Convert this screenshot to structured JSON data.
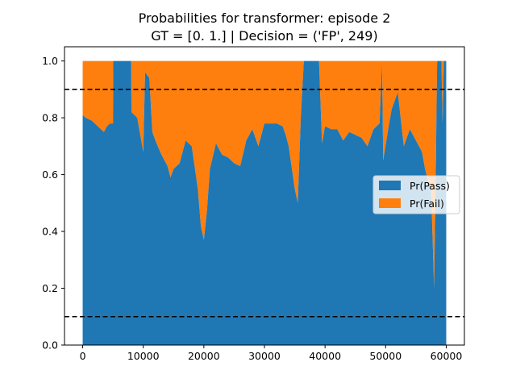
{
  "chart_data": {
    "type": "area",
    "stacked": true,
    "title": [
      "Probabilities for transformer: episode 2",
      "GT = [0. 1.] | Decision = ('FP', 249)"
    ],
    "xlabel": "",
    "ylabel": "",
    "xlim": [
      -3000,
      63000
    ],
    "ylim": [
      0.0,
      1.05
    ],
    "xticks": [
      0,
      10000,
      20000,
      30000,
      40000,
      50000,
      60000
    ],
    "yticks": [
      0.0,
      0.2,
      0.4,
      0.6,
      0.8,
      1.0
    ],
    "xtick_labels": [
      "0",
      "10000",
      "20000",
      "30000",
      "40000",
      "50000",
      "60000"
    ],
    "ytick_labels": [
      "0.0",
      "0.2",
      "0.4",
      "0.6",
      "0.8",
      "1.0"
    ],
    "hlines": [
      0.9,
      0.1
    ],
    "hline_style": "dashed",
    "hline_color": "#000000",
    "legend": {
      "position": "center-right",
      "entries": [
        "Pr(Pass)",
        "Pr(Fail)"
      ]
    },
    "series": [
      {
        "name": "Pr(Pass)",
        "color": "#1f77b4",
        "points": [
          [
            0,
            0.81
          ],
          [
            500,
            0.8
          ],
          [
            1000,
            0.795
          ],
          [
            1500,
            0.79
          ],
          [
            2000,
            0.78
          ],
          [
            2500,
            0.77
          ],
          [
            3000,
            0.76
          ],
          [
            3500,
            0.75
          ],
          [
            4000,
            0.77
          ],
          [
            4500,
            0.78
          ],
          [
            5000,
            0.78
          ],
          [
            5050,
            1.0
          ],
          [
            8000,
            1.0
          ],
          [
            8050,
            0.82
          ],
          [
            9000,
            0.8
          ],
          [
            10000,
            0.68
          ],
          [
            10300,
            0.96
          ],
          [
            11000,
            0.94
          ],
          [
            11500,
            0.75
          ],
          [
            12000,
            0.72
          ],
          [
            13000,
            0.67
          ],
          [
            14000,
            0.63
          ],
          [
            14500,
            0.59
          ],
          [
            15000,
            0.62
          ],
          [
            16000,
            0.64
          ],
          [
            17000,
            0.72
          ],
          [
            18000,
            0.7
          ],
          [
            19000,
            0.55
          ],
          [
            19500,
            0.42
          ],
          [
            20000,
            0.37
          ],
          [
            20500,
            0.47
          ],
          [
            21000,
            0.62
          ],
          [
            22000,
            0.71
          ],
          [
            23000,
            0.67
          ],
          [
            24000,
            0.66
          ],
          [
            25000,
            0.64
          ],
          [
            26000,
            0.63
          ],
          [
            27000,
            0.72
          ],
          [
            28000,
            0.76
          ],
          [
            29000,
            0.7
          ],
          [
            30000,
            0.78
          ],
          [
            31000,
            0.78
          ],
          [
            32000,
            0.78
          ],
          [
            33000,
            0.77
          ],
          [
            33500,
            0.74
          ],
          [
            34000,
            0.7
          ],
          [
            35000,
            0.55
          ],
          [
            35500,
            0.5
          ],
          [
            36000,
            0.8
          ],
          [
            36500,
            1.0
          ],
          [
            39000,
            1.0
          ],
          [
            39500,
            0.71
          ],
          [
            40000,
            0.77
          ],
          [
            41000,
            0.76
          ],
          [
            42000,
            0.76
          ],
          [
            43000,
            0.72
          ],
          [
            44000,
            0.75
          ],
          [
            45000,
            0.74
          ],
          [
            46000,
            0.73
          ],
          [
            47000,
            0.7
          ],
          [
            48000,
            0.76
          ],
          [
            49000,
            0.78
          ],
          [
            49400,
            1.0
          ],
          [
            49600,
            0.65
          ],
          [
            50500,
            0.77
          ],
          [
            51000,
            0.83
          ],
          [
            52000,
            0.89
          ],
          [
            53000,
            0.7
          ],
          [
            54000,
            0.76
          ],
          [
            55000,
            0.72
          ],
          [
            56000,
            0.68
          ],
          [
            56500,
            0.62
          ],
          [
            57000,
            0.58
          ],
          [
            57500,
            0.55
          ],
          [
            58000,
            0.2
          ],
          [
            58300,
            0.65
          ],
          [
            58500,
            1.0
          ],
          [
            59200,
            1.0
          ],
          [
            59400,
            0.78
          ],
          [
            59600,
            1.0
          ],
          [
            60000,
            1.0
          ]
        ]
      },
      {
        "name": "Pr(Fail)",
        "color": "#ff7f0e",
        "complement_of": "Pr(Pass)"
      }
    ]
  }
}
